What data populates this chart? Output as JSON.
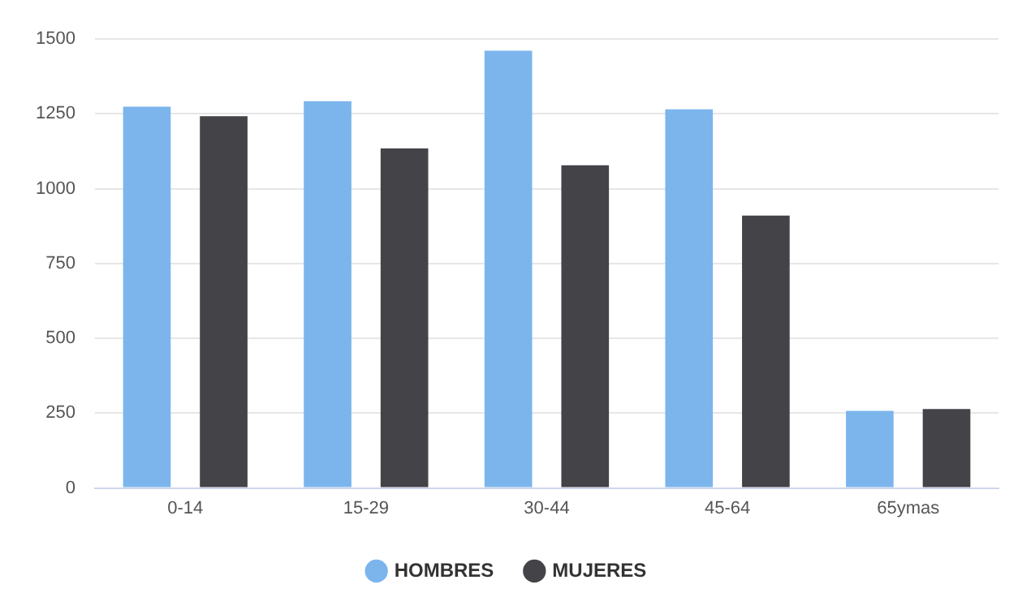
{
  "chart_data": {
    "type": "bar",
    "categories": [
      "0-14",
      "15-29",
      "30-44",
      "45-64",
      "65ymas"
    ],
    "series": [
      {
        "name": "HOMBRES",
        "color": "#7cb5ec",
        "values": [
          1274,
          1292,
          1461,
          1265,
          258
        ]
      },
      {
        "name": "MUJERES",
        "color": "#434348",
        "values": [
          1242,
          1134,
          1078,
          910,
          264
        ]
      }
    ],
    "ylim": [
      0,
      1500
    ],
    "yticks": [
      0,
      250,
      500,
      750,
      1000,
      1250,
      1500
    ],
    "grid": "y",
    "legend": "bottom"
  }
}
